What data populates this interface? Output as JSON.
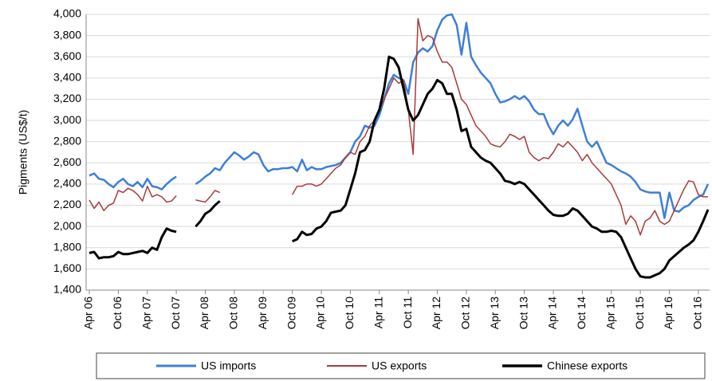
{
  "chart_data": {
    "type": "line",
    "y_label": "Pigments (US$/t)",
    "categories": [
      "Apr 06",
      null,
      null,
      null,
      null,
      null,
      "Oct 06",
      null,
      null,
      null,
      null,
      null,
      "Apr 07",
      null,
      null,
      null,
      null,
      null,
      "Oct 07",
      null,
      null,
      null,
      null,
      null,
      "Apr 08",
      null,
      null,
      null,
      null,
      null,
      "Oct 08",
      null,
      null,
      null,
      null,
      null,
      "Apr 09",
      null,
      null,
      null,
      null,
      null,
      "Oct 09",
      null,
      null,
      null,
      null,
      null,
      "Apr 10",
      null,
      null,
      null,
      null,
      null,
      "Oct 10",
      null,
      null,
      null,
      null,
      null,
      "Apr 11",
      null,
      null,
      null,
      null,
      null,
      "Oct 11",
      null,
      null,
      null,
      null,
      null,
      "Apr 12",
      null,
      null,
      null,
      null,
      null,
      "Oct 12",
      null,
      null,
      null,
      null,
      null,
      "Apr 13",
      null,
      null,
      null,
      null,
      null,
      "Oct 13",
      null,
      null,
      null,
      null,
      null,
      "Apr 14",
      null,
      null,
      null,
      null,
      null,
      "Oct 14",
      null,
      null,
      null,
      null,
      null,
      "Apr 15",
      null,
      null,
      null,
      null,
      null,
      "Oct 15",
      null,
      null,
      null,
      null,
      null,
      "Apr 16",
      null,
      null,
      null,
      null,
      null,
      "Oct 16",
      null,
      null
    ],
    "series": [
      {
        "name": "US imports",
        "color": "#3d7fd6",
        "width": 2.5,
        "values": [
          2480,
          2500,
          2450,
          2440,
          2400,
          2370,
          2420,
          2450,
          2400,
          2380,
          2420,
          2370,
          2450,
          2380,
          2370,
          2350,
          2400,
          2440,
          2470,
          null,
          null,
          null,
          2400,
          2430,
          2470,
          2500,
          2550,
          2530,
          2600,
          2650,
          2700,
          2670,
          2630,
          2660,
          2700,
          2680,
          2580,
          2520,
          2540,
          2540,
          2550,
          2550,
          2560,
          2520,
          2630,
          2530,
          2560,
          2540,
          2540,
          2560,
          2570,
          2580,
          2600,
          2650,
          2700,
          2800,
          2850,
          2950,
          2930,
          2950,
          3050,
          3200,
          3350,
          3430,
          3400,
          3380,
          3250,
          3550,
          3640,
          3680,
          3650,
          3700,
          3850,
          3950,
          3990,
          4000,
          3900,
          3620,
          3920,
          3600,
          3520,
          3450,
          3400,
          3350,
          3250,
          3170,
          3180,
          3200,
          3230,
          3200,
          3230,
          3180,
          3100,
          3060,
          3060,
          2950,
          2870,
          2950,
          3000,
          2950,
          3010,
          3110,
          2950,
          2800,
          2750,
          2800,
          2700,
          2600,
          2580,
          2550,
          2520,
          2500,
          2470,
          2420,
          2350,
          2330,
          2320,
          2320,
          2320,
          2080,
          2320,
          2150,
          2140,
          2180,
          2200,
          2250,
          2280,
          2300,
          2400
        ]
      },
      {
        "name": "US exports",
        "color": "#a83a3a",
        "width": 1.5,
        "values": [
          2250,
          2170,
          2230,
          2150,
          2200,
          2220,
          2340,
          2320,
          2360,
          2340,
          2300,
          2240,
          2380,
          2280,
          2300,
          2280,
          2230,
          2240,
          2290,
          null,
          null,
          null,
          2250,
          2240,
          2230,
          2280,
          2340,
          2320,
          null,
          null,
          null,
          null,
          null,
          null,
          null,
          null,
          null,
          null,
          null,
          null,
          null,
          null,
          2300,
          2380,
          2380,
          2400,
          2400,
          2380,
          2400,
          2450,
          2500,
          2550,
          2580,
          2650,
          2700,
          2680,
          2800,
          2850,
          2950,
          3000,
          3100,
          3200,
          3300,
          3400,
          3350,
          3380,
          3100,
          2680,
          3960,
          3750,
          3800,
          3780,
          3650,
          3550,
          3550,
          3500,
          3350,
          3200,
          3150,
          3050,
          2950,
          2900,
          2850,
          2780,
          2760,
          2750,
          2800,
          2870,
          2850,
          2820,
          2850,
          2700,
          2650,
          2620,
          2650,
          2640,
          2700,
          2780,
          2750,
          2800,
          2750,
          2700,
          2620,
          2680,
          2600,
          2550,
          2500,
          2450,
          2400,
          2300,
          2200,
          2020,
          2100,
          2050,
          1920,
          2050,
          2080,
          2150,
          2050,
          2020,
          2050,
          2150,
          2250,
          2350,
          2430,
          2420,
          2300,
          2280,
          2280
        ]
      },
      {
        "name": "Chinese exports",
        "color": "#000000",
        "width": 3,
        "values": [
          1750,
          1760,
          1700,
          1710,
          1710,
          1720,
          1760,
          1740,
          1740,
          1750,
          1760,
          1770,
          1750,
          1800,
          1780,
          1900,
          1980,
          1960,
          1950,
          null,
          null,
          null,
          2000,
          2050,
          2120,
          2150,
          2200,
          2240,
          null,
          null,
          null,
          null,
          null,
          null,
          null,
          null,
          null,
          null,
          null,
          null,
          null,
          null,
          1860,
          1880,
          1950,
          1920,
          1930,
          1980,
          2000,
          2050,
          2130,
          2140,
          2150,
          2200,
          2350,
          2500,
          2700,
          2720,
          2800,
          3000,
          3100,
          3300,
          3600,
          3580,
          3500,
          3300,
          3100,
          3000,
          3050,
          3150,
          3250,
          3300,
          3380,
          3350,
          3250,
          3250,
          3100,
          2900,
          2920,
          2750,
          2700,
          2650,
          2620,
          2600,
          2550,
          2500,
          2430,
          2420,
          2400,
          2420,
          2400,
          2350,
          2300,
          2250,
          2200,
          2150,
          2110,
          2100,
          2100,
          2120,
          2170,
          2150,
          2100,
          2050,
          2000,
          1980,
          1950,
          1950,
          1960,
          1950,
          1900,
          1800,
          1700,
          1600,
          1530,
          1520,
          1520,
          1540,
          1560,
          1600,
          1680,
          1720,
          1760,
          1800,
          1830,
          1870,
          1950,
          2050,
          2160
        ]
      }
    ],
    "ylim": [
      1400,
      4000
    ],
    "yticks": [
      {
        "value": 1400,
        "label": "1,400"
      },
      {
        "value": 1600,
        "label": "1,600"
      },
      {
        "value": 1800,
        "label": "1,800"
      },
      {
        "value": 2000,
        "label": "2,000"
      },
      {
        "value": 2200,
        "label": "2,200"
      },
      {
        "value": 2400,
        "label": "2,400"
      },
      {
        "value": 2600,
        "label": "2,600"
      },
      {
        "value": 2800,
        "label": "2,800"
      },
      {
        "value": 3000,
        "label": "3,000"
      },
      {
        "value": 3200,
        "label": "3,200"
      },
      {
        "value": 3400,
        "label": "3,400"
      },
      {
        "value": 3600,
        "label": "3,600"
      },
      {
        "value": 3800,
        "label": "3,800"
      },
      {
        "value": 4000,
        "label": "4,000"
      }
    ],
    "grid": true
  }
}
